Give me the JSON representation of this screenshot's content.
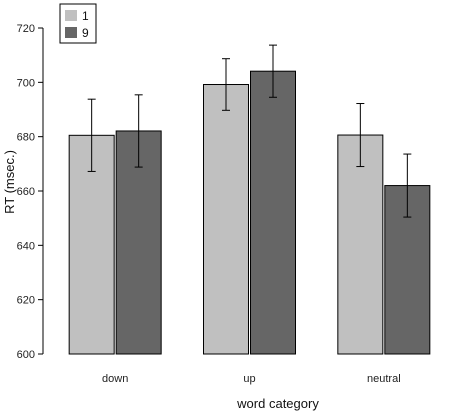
{
  "chart_data": {
    "type": "bar",
    "categories": [
      "down",
      "up",
      "neutral"
    ],
    "series": [
      {
        "name": "1",
        "values": [
          680.5,
          699.2,
          680.6
        ],
        "error": [
          13.3,
          9.5,
          11.6
        ],
        "color": "#c0c0c0"
      },
      {
        "name": "9",
        "values": [
          682.1,
          704.1,
          662.0
        ],
        "error": [
          13.3,
          9.6,
          11.6
        ],
        "color": "#666666"
      }
    ],
    "xlabel": "word category",
    "ylabel": "RT (msec.)",
    "ylim": [
      600,
      720
    ],
    "yticks": [
      600,
      620,
      640,
      660,
      680,
      700,
      720
    ],
    "grid": false,
    "legend_position": "top-left"
  }
}
